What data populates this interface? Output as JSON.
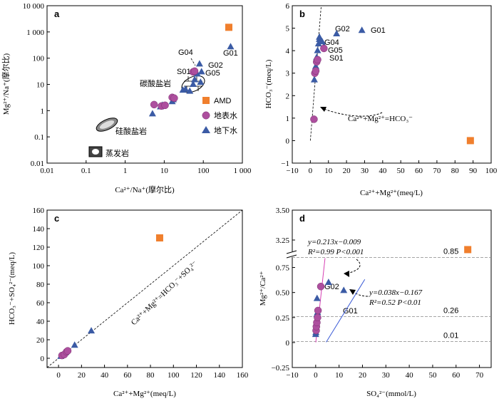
{
  "colors": {
    "amd": "#f07f2d",
    "surface": "#ad4f9e",
    "ground": "#3b5ba5",
    "fit_surface": "#d63fb3",
    "fit_ground": "#3b5bd6"
  },
  "legend": {
    "amd": "AMD",
    "surface": "地表水",
    "ground": "地下水"
  },
  "chart_data": [
    {
      "panel": "a",
      "type": "scatter",
      "xscale": "log",
      "yscale": "log",
      "xlabel": "Ca²⁺/Na⁺(摩尔比)",
      "ylabel": "Mg²⁺/Na⁺(摩尔比)",
      "xlim": [
        0.01,
        1000
      ],
      "ylim": [
        0.01,
        10000
      ],
      "xticks": [
        "0.01",
        "0.1",
        "1",
        "10",
        "100",
        "1 000"
      ],
      "yticks": [
        "0.01",
        "0.1",
        "1",
        "10",
        "100",
        "1 000",
        "10 000"
      ],
      "amd": [
        [
          450,
          1500
        ]
      ],
      "surface": [
        [
          5.5,
          1.7
        ],
        [
          8.5,
          1.5
        ],
        [
          10.5,
          1.6
        ],
        [
          16,
          3.2
        ],
        [
          18,
          3.0
        ],
        [
          55,
          30
        ],
        [
          60,
          32
        ]
      ],
      "ground": [
        [
          5,
          0.75
        ],
        [
          8,
          1.4
        ],
        [
          9,
          1.6
        ],
        [
          16,
          2.2
        ],
        [
          17,
          2.6
        ],
        [
          30,
          6
        ],
        [
          35,
          6.5
        ],
        [
          45,
          5.5
        ],
        [
          55,
          10
        ],
        [
          60,
          15
        ],
        [
          70,
          25
        ],
        [
          80,
          60
        ],
        [
          85,
          12
        ],
        [
          90,
          30
        ],
        [
          500,
          270
        ]
      ],
      "regions": [
        "硅酸盐岩",
        "碳酸盐岩",
        "蒸发岩"
      ],
      "point_labels": [
        "G04",
        "G01",
        "G02",
        "S01",
        "G05"
      ]
    },
    {
      "panel": "b",
      "type": "scatter",
      "xlabel": "Ca²⁺+Mg²⁺(meq/L)",
      "ylabel": "HCO₃⁻(meq/L)",
      "xlim": [
        -10,
        100
      ],
      "ylim": [
        -1,
        6
      ],
      "xticks": [
        "−10",
        "0",
        "10",
        "20",
        "30",
        "40",
        "50",
        "60",
        "70",
        "80",
        "90",
        "100"
      ],
      "yticks": [
        "−1",
        "0",
        "1",
        "2",
        "3",
        "4",
        "5",
        "6"
      ],
      "amd": [
        [
          88.5,
          0
        ]
      ],
      "surface": [
        [
          2,
          0.95
        ],
        [
          2.5,
          3.0
        ],
        [
          3.0,
          3.1
        ],
        [
          3.5,
          3.5
        ],
        [
          4.0,
          3.6
        ],
        [
          7.5,
          4.1
        ]
      ],
      "ground": [
        [
          2.2,
          2.7
        ],
        [
          3,
          3.3
        ],
        [
          3.5,
          3.7
        ],
        [
          4,
          4.0
        ],
        [
          4.5,
          4.3
        ],
        [
          5,
          4.5
        ],
        [
          5,
          4.6
        ],
        [
          6.5,
          4.4
        ],
        [
          7.5,
          4.2
        ],
        [
          14.5,
          4.75
        ],
        [
          28.5,
          4.9
        ]
      ],
      "point_labels": [
        "G02",
        "G01",
        "G04",
        "G05",
        "S01"
      ],
      "annotation": "Ca²⁺+Mg²⁺=HCO₃⁻"
    },
    {
      "panel": "c",
      "type": "scatter",
      "xlabel": "Ca²⁺+Mg²⁺(meq/L)",
      "ylabel": "HCO₃⁻+SO₄²⁻(meq/L)",
      "xlim": [
        -10,
        160
      ],
      "ylim": [
        -10,
        160
      ],
      "xticks": [
        "0",
        "20",
        "40",
        "60",
        "80",
        "100",
        "120",
        "140",
        "160"
      ],
      "yticks": [
        "0",
        "20",
        "40",
        "60",
        "80",
        "100",
        "120",
        "140",
        "160"
      ],
      "amd": [
        [
          88,
          130
        ]
      ],
      "surface": [
        [
          3,
          3
        ],
        [
          5,
          4
        ],
        [
          7,
          7
        ],
        [
          8,
          8
        ]
      ],
      "ground": [
        [
          2,
          2
        ],
        [
          4,
          4
        ],
        [
          6,
          6
        ],
        [
          14,
          14
        ],
        [
          28.5,
          29.5
        ]
      ],
      "annotation": "Ca²⁺+Mg²⁺=HCO₃⁻+SO₄²⁻"
    },
    {
      "panel": "d",
      "type": "scatter",
      "xlabel": "SO₄²⁻(mmol/L)",
      "ylabel": "Mg²⁺/Ca²⁺",
      "xlim": [
        -10,
        75
      ],
      "ylim": [
        -0.25,
        3.5
      ],
      "xticks": [
        "−10",
        "0",
        "10",
        "20",
        "30",
        "40",
        "50",
        "60",
        "70"
      ],
      "yticks": [
        "−0.25",
        "0",
        "0.25",
        "0.50",
        "0.75",
        "3.25",
        "3.50"
      ],
      "amd": [
        [
          65,
          3.17
        ]
      ],
      "surface": [
        [
          0.2,
          0.12
        ],
        [
          0.3,
          0.16
        ],
        [
          0.5,
          0.2
        ],
        [
          0.8,
          0.25
        ],
        [
          1.0,
          0.32
        ],
        [
          2.2,
          0.56
        ]
      ],
      "ground": [
        [
          0,
          0.08
        ],
        [
          0.1,
          0.1
        ],
        [
          0.2,
          0.14
        ],
        [
          0.4,
          0.18
        ],
        [
          0.5,
          0.28
        ],
        [
          0.6,
          0.44
        ],
        [
          0.8,
          0.3
        ],
        [
          5.5,
          0.6
        ],
        [
          12,
          0.52
        ]
      ],
      "reference_lines": [
        {
          "y": 0.85,
          "label": "0.85"
        },
        {
          "y": 0.26,
          "label": "0.26"
        },
        {
          "y": 0.01,
          "label": "0.01"
        }
      ],
      "point_labels": [
        "G02",
        "G01"
      ],
      "fits": [
        {
          "equation": "y=0.213x−0.009",
          "stats": "R²=0.99  P<0.001"
        },
        {
          "equation": "y=0.038x−0.167",
          "stats": "R²=0.52  P<0.01"
        }
      ]
    }
  ]
}
